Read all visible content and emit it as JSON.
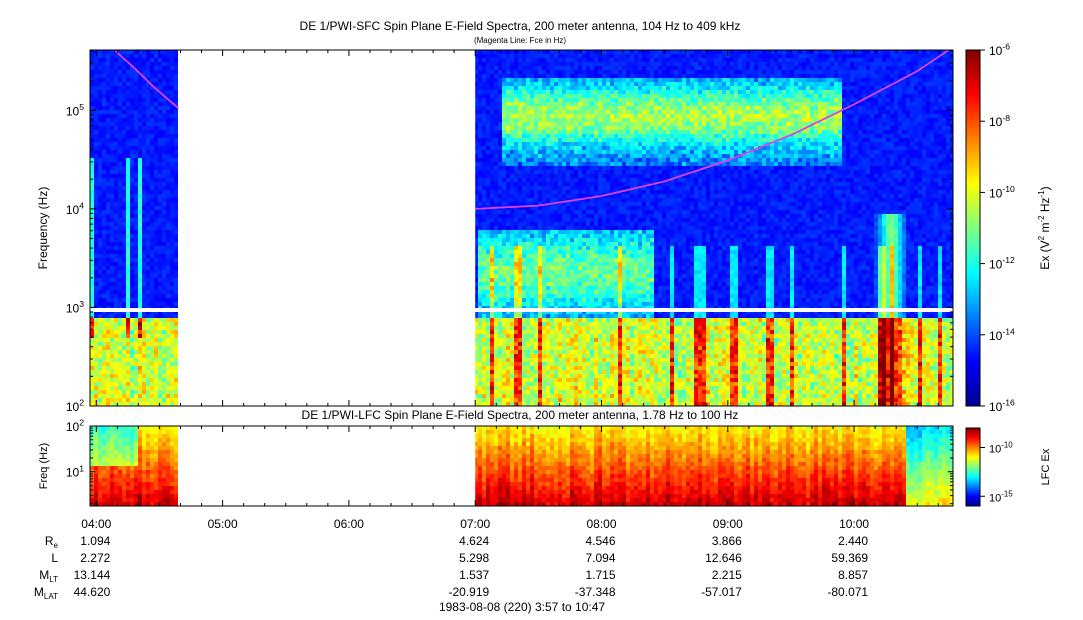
{
  "chart_data": [
    {
      "type": "heatmap",
      "title": "DE 1/PWI-SFC  Spin Plane E-Field Spectra, 200 meter antenna, 104 Hz to 409 kHz",
      "subtitle": "(Magenta Line: Fce in Hz)",
      "ylabel": "Frequency (Hz)",
      "yscale": "log",
      "ylim": [
        100,
        409000
      ],
      "ytick_values": [
        100,
        1000,
        10000,
        100000
      ],
      "ytick_labels": [
        {
          "base": "10",
          "exp": "2"
        },
        {
          "base": "10",
          "exp": "3"
        },
        {
          "base": "10",
          "exp": "4"
        },
        {
          "base": "10",
          "exp": "5"
        }
      ],
      "xlim_hours": [
        3.95,
        10.783
      ],
      "data_gaps_hours": [
        [
          4.65,
          7.0
        ]
      ],
      "colorbar": {
        "label_parts": [
          "Ex (V",
          "2",
          " m",
          "-2",
          " Hz",
          "-1",
          ")"
        ],
        "scale": "log",
        "range": [
          1e-16,
          1e-06
        ],
        "tick_values": [
          -6,
          -8,
          -10,
          -12,
          -14,
          -16
        ],
        "tick_labels": [
          {
            "base": "10",
            "exp": "-6"
          },
          {
            "base": "10",
            "exp": "-8"
          },
          {
            "base": "10",
            "exp": "-10"
          },
          {
            "base": "10",
            "exp": "-12"
          },
          {
            "base": "10",
            "exp": "-14"
          },
          {
            "base": "10",
            "exp": "-16"
          }
        ]
      },
      "overlay_line": {
        "color": "#e040e0",
        "segments": [
          {
            "hours": [
              4.15,
              4.3,
              4.45,
              4.58,
              4.65
            ],
            "freq_hz": [
              400000,
              270000,
              175000,
              125000,
              105000
            ]
          },
          {
            "hours": [
              7.0,
              7.5,
              8.0,
              8.5,
              9.0,
              9.5,
              10.0,
              10.5,
              10.75
            ],
            "freq_hz": [
              10000,
              10800,
              13500,
              19000,
              31000,
              56000,
              115000,
              250000,
              409000
            ]
          }
        ]
      }
    },
    {
      "type": "heatmap",
      "title": "DE 1/PWI-LFC  Spin Plane E-Field Spectra, 200 meter antenna, 1.78 Hz to 100 Hz",
      "ylabel": "Freq (Hz)",
      "yscale": "log",
      "ylim": [
        1.78,
        100
      ],
      "ytick_values": [
        10,
        100
      ],
      "ytick_labels": [
        {
          "base": "10",
          "exp": "1"
        },
        {
          "base": "10",
          "exp": "2"
        }
      ],
      "xlim_hours": [
        3.95,
        10.783
      ],
      "data_gaps_hours": [
        [
          4.65,
          7.0
        ]
      ],
      "colorbar": {
        "label": "LFC Ex",
        "scale": "log",
        "range": [
          1e-16,
          1e-08
        ],
        "tick_values": [
          -10,
          -15
        ],
        "tick_labels": [
          {
            "base": "10",
            "exp": "-10"
          },
          {
            "base": "10",
            "exp": "-15"
          }
        ]
      }
    }
  ],
  "time_axis": {
    "tick_hours": [
      4,
      5,
      6,
      7,
      8,
      9,
      10
    ],
    "tick_labels": [
      "04:00",
      "05:00",
      "06:00",
      "07:00",
      "08:00",
      "09:00",
      "10:00"
    ],
    "minor_step_minutes": 10
  },
  "ephemeris": {
    "rows": [
      {
        "name": "R",
        "sub": "e",
        "values": [
          "1.094",
          "",
          "",
          "4.624",
          "4.546",
          "3.866",
          "2.440"
        ]
      },
      {
        "name": "L",
        "sub": "",
        "values": [
          "2.272",
          "",
          "",
          "5.298",
          "7.094",
          "12.646",
          "59.369"
        ]
      },
      {
        "name": "M",
        "sub": "LT",
        "values": [
          "13.144",
          "",
          "",
          "1.537",
          "1.715",
          "2.215",
          "8.857"
        ]
      },
      {
        "name": "M",
        "sub": "LAT",
        "values": [
          "44.620",
          "",
          "",
          "-20.919",
          "-37.348",
          "-57.017",
          "-80.071"
        ]
      }
    ]
  },
  "footer": "1983-08-08 (220) 3:57 to 10:47",
  "colors": {
    "colormap": [
      "#00008f",
      "#0000ff",
      "#0080ff",
      "#00ffff",
      "#80ff80",
      "#ffff00",
      "#ff8000",
      "#ff0000",
      "#800000"
    ],
    "fce_line": "#e040e0"
  }
}
